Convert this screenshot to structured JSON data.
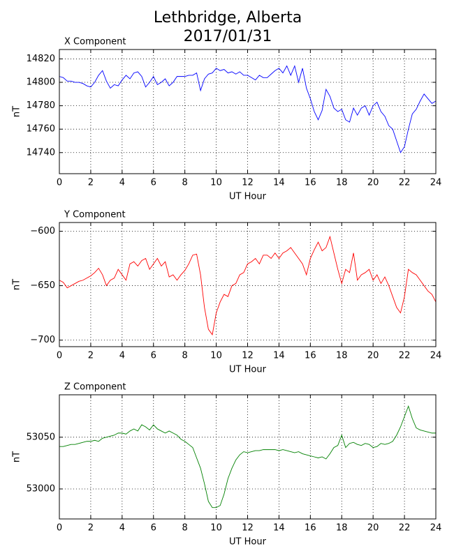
{
  "title": "Lethbridge, Alberta",
  "subtitle": "2017/01/31",
  "chart_data": [
    {
      "type": "line",
      "title": "X Component",
      "xlabel": "UT Hour",
      "ylabel": "nT",
      "grid": true,
      "xlim": [
        0,
        24
      ],
      "xticks": [
        0,
        2,
        4,
        6,
        8,
        10,
        12,
        14,
        16,
        18,
        20,
        22,
        24
      ],
      "ylim": [
        14722,
        14828
      ],
      "yticks": [
        14740,
        14760,
        14780,
        14800,
        14820
      ],
      "x": [
        0,
        0.25,
        0.5,
        0.75,
        1,
        1.25,
        1.5,
        1.75,
        2,
        2.25,
        2.5,
        2.75,
        3,
        3.25,
        3.5,
        3.75,
        4,
        4.25,
        4.5,
        4.75,
        5,
        5.25,
        5.5,
        5.75,
        6,
        6.25,
        6.5,
        6.75,
        7,
        7.25,
        7.5,
        7.75,
        8,
        8.25,
        8.5,
        8.75,
        9,
        9.25,
        9.5,
        9.75,
        10,
        10.25,
        10.5,
        10.75,
        11,
        11.25,
        11.5,
        11.75,
        12,
        12.25,
        12.5,
        12.75,
        13,
        13.25,
        13.5,
        13.75,
        14,
        14.25,
        14.5,
        14.75,
        15,
        15.25,
        15.5,
        15.75,
        16,
        16.25,
        16.5,
        16.75,
        17,
        17.25,
        17.5,
        17.75,
        18,
        18.25,
        18.5,
        18.75,
        19,
        19.25,
        19.5,
        19.75,
        20,
        20.25,
        20.5,
        20.75,
        21,
        21.25,
        21.5,
        21.75,
        22,
        22.25,
        22.5,
        22.75,
        23,
        23.25,
        23.5,
        23.75,
        24
      ],
      "series": [
        {
          "color": "#0000ff",
          "values": [
            14805,
            14804,
            14801,
            14801,
            14800,
            14800,
            14799,
            14797,
            14796,
            14800,
            14806,
            14810,
            14801,
            14795,
            14798,
            14797,
            14802,
            14806,
            14803,
            14808,
            14809,
            14805,
            14796,
            14800,
            14805,
            14798,
            14800,
            14803,
            14797,
            14800,
            14805,
            14805,
            14805,
            14806,
            14806,
            14808,
            14793,
            14803,
            14807,
            14808,
            14812,
            14810,
            14811,
            14808,
            14809,
            14807,
            14809,
            14806,
            14806,
            14804,
            14802,
            14806,
            14804,
            14804,
            14807,
            14810,
            14812,
            14808,
            14814,
            14806,
            14814,
            14800,
            14812,
            14795,
            14786,
            14775,
            14768,
            14776,
            14794,
            14788,
            14778,
            14775,
            14777,
            14768,
            14766,
            14778,
            14772,
            14778,
            14780,
            14772,
            14780,
            14783,
            14775,
            14771,
            14763,
            14760,
            14750,
            14740,
            14745,
            14760,
            14773,
            14777,
            14784,
            14790,
            14786,
            14782,
            14784
          ]
        }
      ]
    },
    {
      "type": "line",
      "title": "Y Component",
      "xlabel": "UT Hour",
      "ylabel": "nT",
      "grid": true,
      "xlim": [
        0,
        24
      ],
      "xticks": [
        0,
        2,
        4,
        6,
        8,
        10,
        12,
        14,
        16,
        18,
        20,
        22,
        24
      ],
      "ylim": [
        -706,
        -592
      ],
      "yticks": [
        {
          "value": -700,
          "label": "−700"
        },
        {
          "value": -650,
          "label": "−650"
        },
        {
          "value": -600,
          "label": "−600"
        }
      ],
      "x": [
        0,
        0.25,
        0.5,
        0.75,
        1,
        1.25,
        1.5,
        1.75,
        2,
        2.25,
        2.5,
        2.75,
        3,
        3.25,
        3.5,
        3.75,
        4,
        4.25,
        4.5,
        4.75,
        5,
        5.25,
        5.5,
        5.75,
        6,
        6.25,
        6.5,
        6.75,
        7,
        7.25,
        7.5,
        7.75,
        8,
        8.25,
        8.5,
        8.75,
        9,
        9.25,
        9.5,
        9.75,
        10,
        10.25,
        10.5,
        10.75,
        11,
        11.25,
        11.5,
        11.75,
        12,
        12.25,
        12.5,
        12.75,
        13,
        13.25,
        13.5,
        13.75,
        14,
        14.25,
        14.5,
        14.75,
        15,
        15.25,
        15.5,
        15.75,
        16,
        16.25,
        16.5,
        16.75,
        17,
        17.25,
        17.5,
        17.75,
        18,
        18.25,
        18.5,
        18.75,
        19,
        19.25,
        19.5,
        19.75,
        20,
        20.25,
        20.5,
        20.75,
        21,
        21.25,
        21.5,
        21.75,
        22,
        22.25,
        22.5,
        22.75,
        23,
        23.25,
        23.5,
        23.75,
        24
      ],
      "series": [
        {
          "color": "#ff0000",
          "values": [
            -645,
            -647,
            -652,
            -650,
            -648,
            -646,
            -645,
            -643,
            -641,
            -638,
            -634,
            -640,
            -650,
            -645,
            -643,
            -635,
            -640,
            -645,
            -630,
            -628,
            -632,
            -627,
            -625,
            -635,
            -630,
            -625,
            -632,
            -628,
            -642,
            -640,
            -645,
            -640,
            -636,
            -630,
            -622,
            -621,
            -640,
            -670,
            -690,
            -695,
            -675,
            -665,
            -658,
            -660,
            -650,
            -648,
            -640,
            -638,
            -630,
            -628,
            -625,
            -630,
            -622,
            -622,
            -625,
            -620,
            -625,
            -620,
            -618,
            -615,
            -620,
            -625,
            -630,
            -640,
            -625,
            -617,
            -610,
            -618,
            -615,
            -605,
            -620,
            -635,
            -648,
            -635,
            -638,
            -620,
            -645,
            -640,
            -638,
            -635,
            -645,
            -640,
            -648,
            -642,
            -650,
            -660,
            -670,
            -675,
            -660,
            -635,
            -638,
            -640,
            -645,
            -650,
            -655,
            -658,
            -665
          ]
        }
      ]
    },
    {
      "type": "line",
      "title": "Z Component",
      "xlabel": "UT Hour",
      "ylabel": "nT",
      "grid": true,
      "xlim": [
        0,
        24
      ],
      "xticks": [
        0,
        2,
        4,
        6,
        8,
        10,
        12,
        14,
        16,
        18,
        20,
        22,
        24
      ],
      "ylim": [
        52971,
        53091
      ],
      "yticks": [
        53000,
        53050
      ],
      "x": [
        0,
        0.25,
        0.5,
        0.75,
        1,
        1.25,
        1.5,
        1.75,
        2,
        2.25,
        2.5,
        2.75,
        3,
        3.25,
        3.5,
        3.75,
        4,
        4.25,
        4.5,
        4.75,
        5,
        5.25,
        5.5,
        5.75,
        6,
        6.25,
        6.5,
        6.75,
        7,
        7.25,
        7.5,
        7.75,
        8,
        8.25,
        8.5,
        8.75,
        9,
        9.25,
        9.5,
        9.75,
        10,
        10.25,
        10.5,
        10.75,
        11,
        11.25,
        11.5,
        11.75,
        12,
        12.25,
        12.5,
        12.75,
        13,
        13.25,
        13.5,
        13.75,
        14,
        14.25,
        14.5,
        14.75,
        15,
        15.25,
        15.5,
        15.75,
        16,
        16.25,
        16.5,
        16.75,
        17,
        17.25,
        17.5,
        17.75,
        18,
        18.25,
        18.5,
        18.75,
        19,
        19.25,
        19.5,
        19.75,
        20,
        20.25,
        20.5,
        20.75,
        21,
        21.25,
        21.5,
        21.75,
        22,
        22.25,
        22.5,
        22.75,
        23,
        23.25,
        23.5,
        23.75,
        24
      ],
      "series": [
        {
          "color": "#008000",
          "values": [
            53041,
            53041,
            53042,
            53043,
            53043,
            53044,
            53045,
            53046,
            53046,
            53047,
            53046,
            53049,
            53050,
            53051,
            53052,
            53054,
            53054,
            53053,
            53056,
            53058,
            53056,
            53062,
            53060,
            53057,
            53062,
            53058,
            53056,
            53054,
            53056,
            53054,
            53052,
            53048,
            53046,
            53043,
            53040,
            53030,
            53020,
            53005,
            52988,
            52982,
            52982,
            52984,
            52995,
            53010,
            53020,
            53028,
            53033,
            53036,
            53035,
            53036,
            53037,
            53037,
            53038,
            53038,
            53038,
            53038,
            53037,
            53038,
            53037,
            53036,
            53035,
            53036,
            53034,
            53033,
            53032,
            53031,
            53030,
            53031,
            53029,
            53034,
            53040,
            53042,
            53052,
            53040,
            53044,
            53045,
            53043,
            53042,
            53044,
            53043,
            53040,
            53041,
            53044,
            53043,
            53044,
            53046,
            53052,
            53060,
            53070,
            53080,
            53068,
            53059,
            53057,
            53056,
            53055,
            53054,
            53054
          ]
        }
      ]
    }
  ]
}
